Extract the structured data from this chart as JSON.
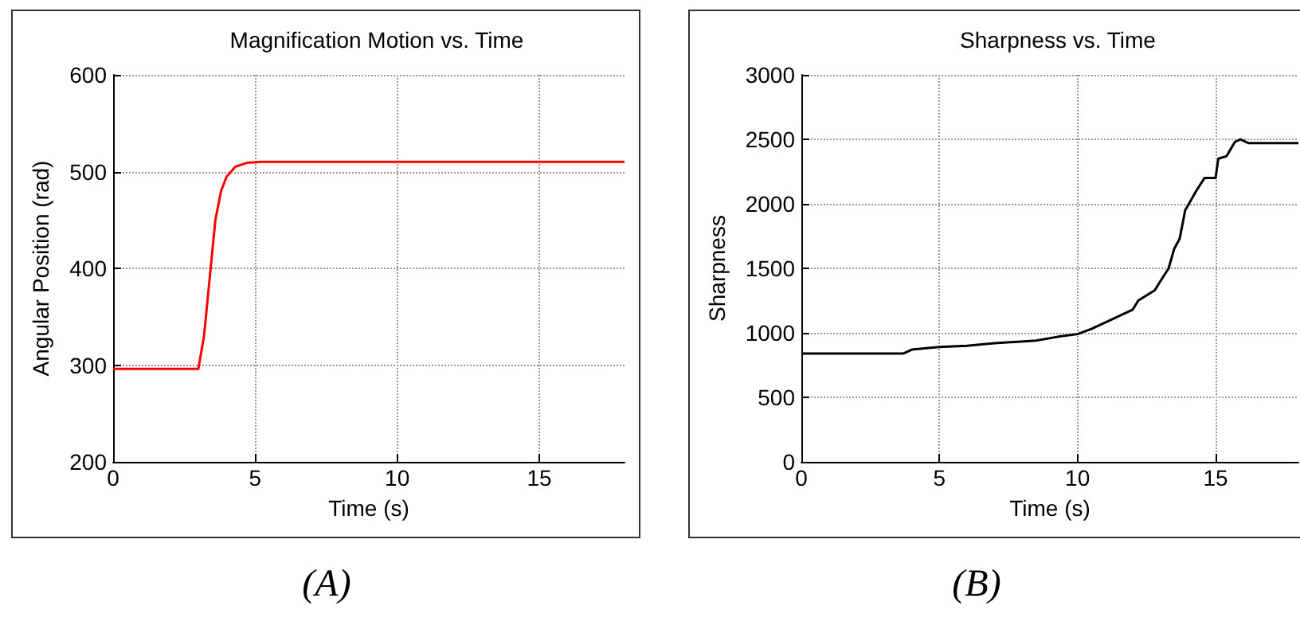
{
  "chart_data": [
    {
      "type": "line",
      "title": "Magnification Motion vs. Time",
      "xlabel": "Time (s)",
      "ylabel": "Angular Position (rad)",
      "xlim": [
        0,
        18
      ],
      "xticks": [
        0,
        5,
        10,
        15
      ],
      "ylim": [
        200,
        600
      ],
      "yticks": [
        200,
        300,
        400,
        500,
        600
      ],
      "grid": true,
      "marker": "none",
      "line_style": "solid",
      "annotations": [
        "(A)"
      ],
      "series": [
        {
          "color": "#ff0000",
          "x": [
            0,
            3.0,
            3.2,
            3.4,
            3.6,
            3.8,
            4.0,
            4.3,
            4.7,
            5.2,
            18
          ],
          "values": [
            296,
            296,
            330,
            390,
            450,
            480,
            495,
            505,
            509,
            510,
            510
          ]
        }
      ]
    },
    {
      "type": "line",
      "title": "Sharpness vs. Time",
      "xlabel": "Time (s)",
      "ylabel": "Sharpness",
      "xlim": [
        0,
        18
      ],
      "xticks": [
        0,
        5,
        10,
        15
      ],
      "ylim": [
        0,
        3000
      ],
      "yticks": [
        0,
        500,
        1000,
        1500,
        2000,
        2500,
        3000
      ],
      "grid": true,
      "marker": "none",
      "line_style": "solid",
      "annotations": [
        "(B)"
      ],
      "series": [
        {
          "color": "#000000",
          "x": [
            0,
            3.7,
            4.0,
            5,
            6,
            7,
            8.5,
            9.3,
            10,
            10.5,
            11.2,
            12,
            12.2,
            12.8,
            13.0,
            13.3,
            13.5,
            13.7,
            13.9,
            14.3,
            14.6,
            15.0,
            15.1,
            15.4,
            15.7,
            15.9,
            16.2,
            18
          ],
          "values": [
            840,
            840,
            870,
            890,
            900,
            920,
            940,
            970,
            990,
            1030,
            1100,
            1180,
            1250,
            1330,
            1400,
            1500,
            1650,
            1730,
            1950,
            2100,
            2200,
            2200,
            2350,
            2370,
            2480,
            2500,
            2470,
            2470
          ]
        }
      ]
    }
  ]
}
